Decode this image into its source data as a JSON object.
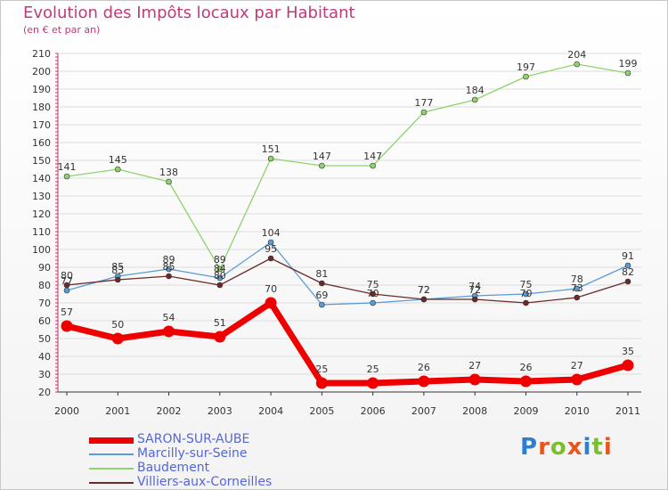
{
  "title": "Evolution des Impôts locaux par Habitant",
  "subtitle": "(en € et par an)",
  "brand": {
    "text": "Proxiti",
    "letters": [
      "P",
      "r",
      "o",
      "x",
      "i",
      "t",
      "i"
    ],
    "colors": [
      "#2f7fd0",
      "#e8561f",
      "#7bbf2a",
      "#e8561f",
      "#2f7fd0",
      "#7bbf2a",
      "#e8561f"
    ]
  },
  "chart_data": {
    "type": "line",
    "categories": [
      "2000",
      "2001",
      "2002",
      "2003",
      "2004",
      "2005",
      "2006",
      "2007",
      "2008",
      "2009",
      "2010",
      "2011"
    ],
    "ylim": [
      20,
      210
    ],
    "yticks": [
      20,
      30,
      40,
      50,
      60,
      70,
      80,
      90,
      100,
      110,
      120,
      130,
      140,
      150,
      160,
      170,
      180,
      190,
      200,
      210
    ],
    "grid": true,
    "legend_position": "bottom-left",
    "series": [
      {
        "name": "SARON-SUR-AUBE",
        "color": "#ee0000",
        "values": [
          57,
          50,
          54,
          51,
          70,
          25,
          25,
          26,
          27,
          26,
          27,
          35
        ]
      },
      {
        "name": "Marcilly-sur-Seine",
        "color": "#5b9bd5",
        "values": [
          77,
          85,
          89,
          84,
          104,
          69,
          70,
          72,
          74,
          75,
          78,
          91
        ]
      },
      {
        "name": "Baudement",
        "color": "#8fd36b",
        "values": [
          141,
          145,
          138,
          89,
          151,
          147,
          147,
          177,
          184,
          197,
          204,
          199
        ]
      },
      {
        "name": "Villiers-aux-Corneilles",
        "color": "#6b2a2a",
        "values": [
          80,
          83,
          85,
          80,
          95,
          81,
          75,
          72,
          72,
          70,
          73,
          82
        ]
      }
    ]
  }
}
